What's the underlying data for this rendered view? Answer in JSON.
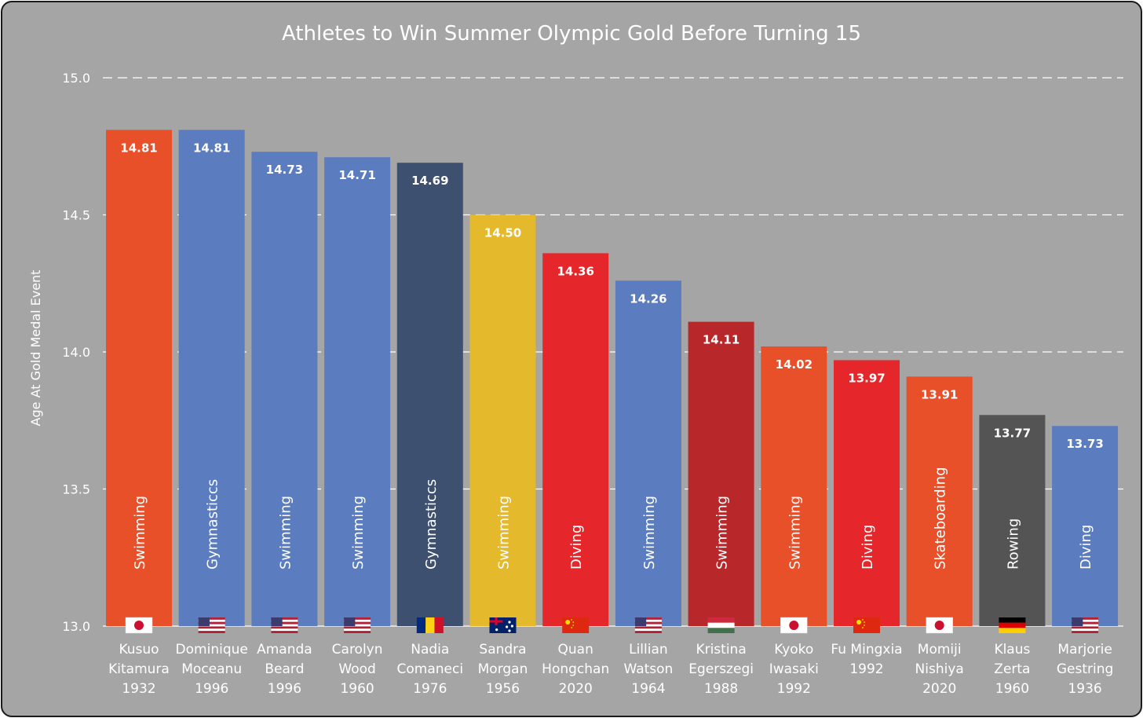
{
  "chart_data": {
    "type": "bar",
    "title": "Athletes to Win Summer Olympic Gold Before Turning 15",
    "xlabel": "",
    "ylabel": "Age At Gold Medal Event",
    "ylim": [
      13.0,
      15.0
    ],
    "yticks": [
      "13.0",
      "13.5",
      "14.0",
      "14.5",
      "15.0"
    ],
    "grid": true,
    "categories": [
      [
        "Kusuo",
        "Kitamura",
        "1932"
      ],
      [
        "Dominique",
        "Moceanu",
        "1996"
      ],
      [
        "Amanda",
        "Beard",
        "1996"
      ],
      [
        "Carolyn",
        "Wood",
        "1960"
      ],
      [
        "Nadia",
        "Comaneci",
        "1976"
      ],
      [
        "Sandra",
        "Morgan",
        "1956"
      ],
      [
        "Quan",
        "Hongchan",
        "2020"
      ],
      [
        "Lillian",
        "Watson",
        "1964"
      ],
      [
        "Kristina",
        "Egerszegi",
        "1988"
      ],
      [
        "Kyoko",
        "Iwasaki",
        "1992"
      ],
      [
        "Fu Mingxia",
        "1992"
      ],
      [
        "Momiji",
        "Nishiya",
        "2020"
      ],
      [
        "Klaus",
        "Zerta",
        "1960"
      ],
      [
        "Marjorie",
        "Gestring",
        "1936"
      ]
    ],
    "values": [
      14.81,
      14.81,
      14.73,
      14.71,
      14.69,
      14.5,
      14.36,
      14.26,
      14.11,
      14.02,
      13.97,
      13.91,
      13.77,
      13.73
    ],
    "value_labels": [
      "14.81",
      "14.81",
      "14.73",
      "14.71",
      "14.69",
      "14.50",
      "14.36",
      "14.26",
      "14.11",
      "14.02",
      "13.97",
      "13.91",
      "13.77",
      "13.73"
    ],
    "sports": [
      "Swimming",
      "Gymnasticcs",
      "Swimming",
      "Swimming",
      "Gymnasticcs",
      "Swimming",
      "Diving",
      "Swimming",
      "Swimming",
      "Swimming",
      "Diving",
      "Skateboarding",
      "Rowing",
      "Diving"
    ],
    "countries": [
      "japan",
      "usa",
      "usa",
      "usa",
      "romania",
      "australia",
      "china",
      "usa",
      "hungary",
      "japan",
      "china",
      "japan",
      "germany",
      "usa"
    ],
    "colors": [
      "#e8502a",
      "#5b7dbf",
      "#5b7dbf",
      "#5b7dbf",
      "#3e5070",
      "#e5b92c",
      "#e5262a",
      "#5b7dbf",
      "#b8282b",
      "#e8502a",
      "#e5262a",
      "#e8502a",
      "#555454",
      "#5b7dbf"
    ],
    "value_label_colors": [
      "#ffffff",
      "#ffffff",
      "#ffffff",
      "#ffffff",
      "#ffffff",
      "#ffffff",
      "#ffffff",
      "#ffffff",
      "#ffffff",
      "#ffffff",
      "#ffffff",
      "#ffffff",
      "#ffffff",
      "#ffffff"
    ],
    "background": "#a5a5a5"
  }
}
